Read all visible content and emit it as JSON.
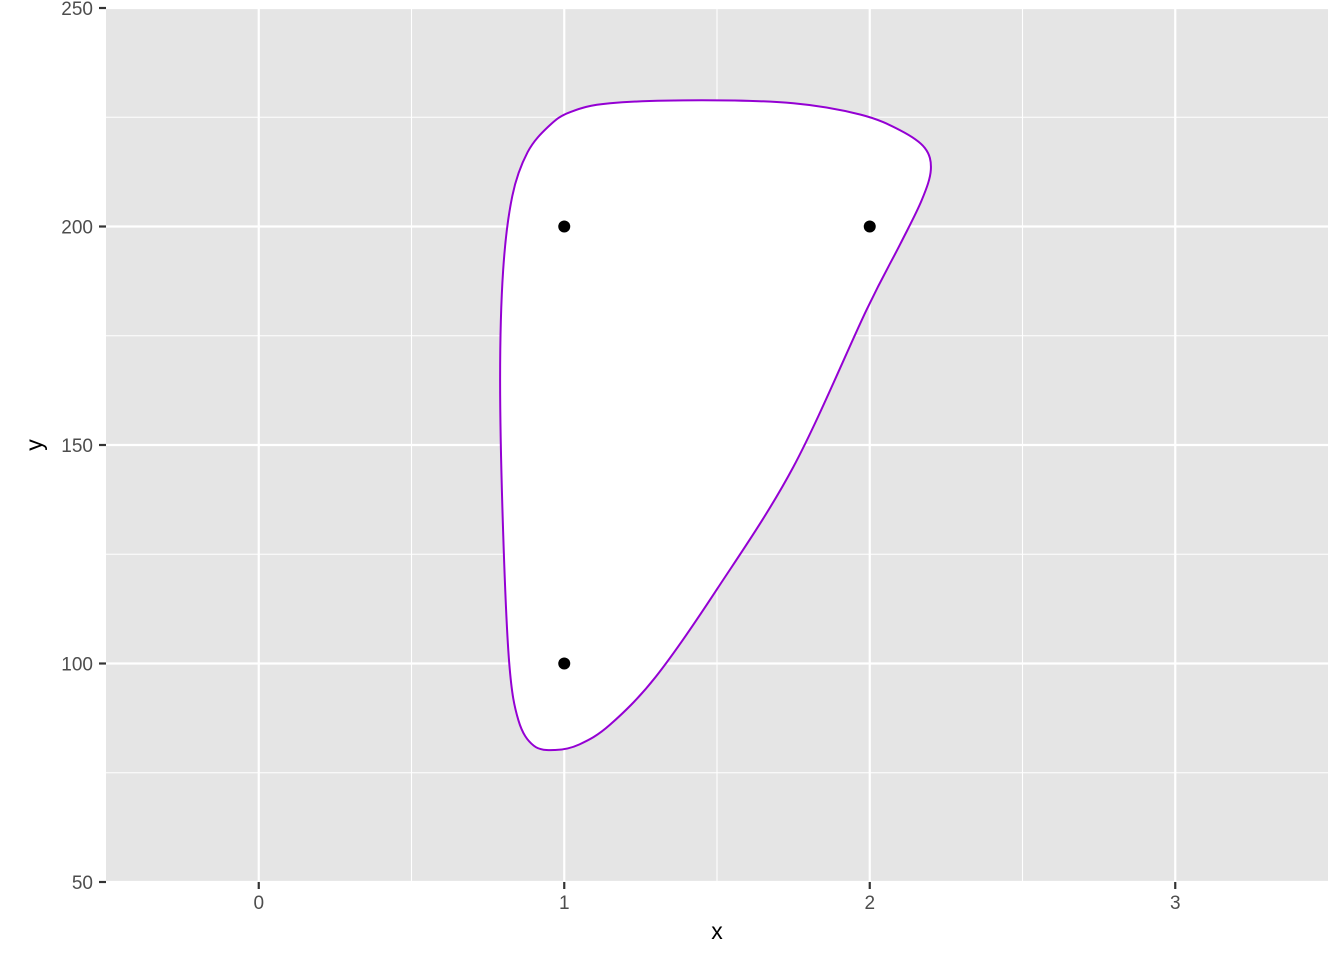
{
  "chart_data": {
    "type": "scatter",
    "title": "",
    "xlabel": "x",
    "ylabel": "y",
    "xlim": [
      -0.5,
      3.5
    ],
    "ylim": [
      50,
      250
    ],
    "x_ticks": [
      0,
      1,
      2,
      3
    ],
    "y_ticks": [
      50,
      100,
      150,
      200,
      250
    ],
    "grid": true,
    "legend": "none",
    "panel_color": "#e5e5e5",
    "grid_color": "#ffffff",
    "points": [
      {
        "x": 1,
        "y": 200
      },
      {
        "x": 2,
        "y": 200
      },
      {
        "x": 1,
        "y": 100
      }
    ],
    "point_color": "#000000",
    "encircle": {
      "outline_color": "#9400d3",
      "fill_color": "#ffffff",
      "path": [
        {
          "x": 1.15,
          "y": 228.2
        },
        {
          "x": 1.45,
          "y": 228.9
        },
        {
          "x": 1.75,
          "y": 228.2
        },
        {
          "x": 1.97,
          "y": 225.6
        },
        {
          "x": 2.1,
          "y": 222.0
        },
        {
          "x": 2.18,
          "y": 218.0
        },
        {
          "x": 2.2,
          "y": 213.0
        },
        {
          "x": 2.17,
          "y": 206.0
        },
        {
          "x": 2.1,
          "y": 196.0
        },
        {
          "x": 1.99,
          "y": 181.0
        },
        {
          "x": 1.75,
          "y": 145.0
        },
        {
          "x": 1.5,
          "y": 117.0
        },
        {
          "x": 1.3,
          "y": 97.0
        },
        {
          "x": 1.15,
          "y": 86.0
        },
        {
          "x": 1.05,
          "y": 81.5
        },
        {
          "x": 0.97,
          "y": 80.2
        },
        {
          "x": 0.9,
          "y": 81.2
        },
        {
          "x": 0.85,
          "y": 87.0
        },
        {
          "x": 0.82,
          "y": 100.0
        },
        {
          "x": 0.8,
          "y": 130.0
        },
        {
          "x": 0.79,
          "y": 165.0
        },
        {
          "x": 0.8,
          "y": 190.0
        },
        {
          "x": 0.83,
          "y": 207.0
        },
        {
          "x": 0.88,
          "y": 217.0
        },
        {
          "x": 0.95,
          "y": 223.0
        },
        {
          "x": 1.02,
          "y": 226.2
        }
      ]
    }
  }
}
